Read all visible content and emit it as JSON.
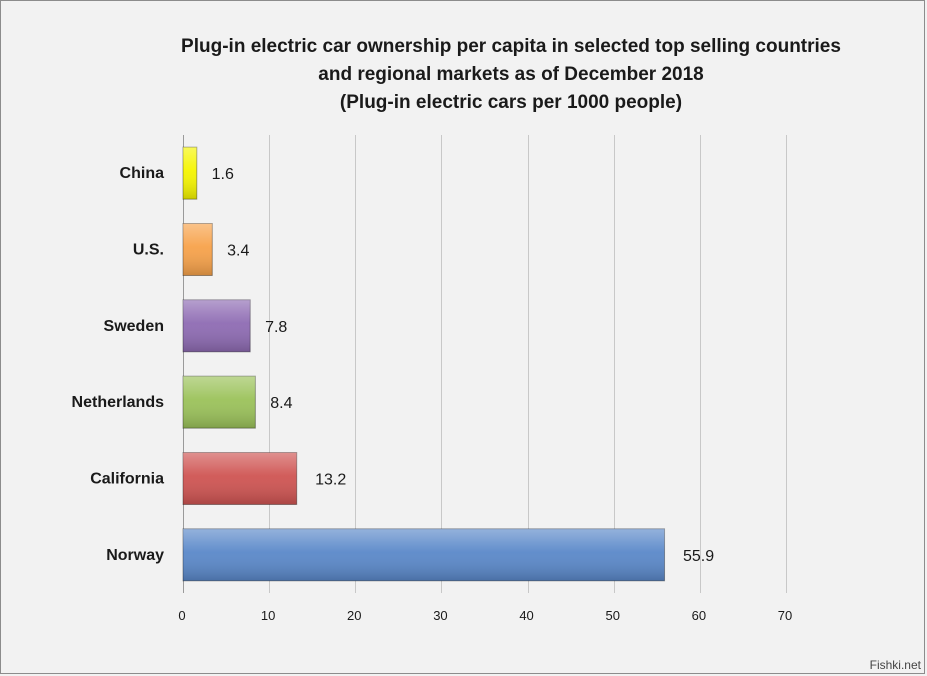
{
  "chart_data": {
    "type": "bar",
    "orientation": "horizontal",
    "title": [
      "Plug-in electric car ownership per capita in selected top selling countries",
      "and regional markets as of December 2018",
      "(Plug-in electric cars per 1000 people)"
    ],
    "categories": [
      "China",
      "U.S.",
      "Sweden",
      "Netherlands",
      "California",
      "Norway"
    ],
    "values": [
      1.6,
      3.4,
      7.8,
      8.4,
      13.2,
      55.9
    ],
    "data_labels": [
      "1.6",
      "3.4",
      "7.8",
      "8.4",
      "13.2",
      "55.9"
    ],
    "colors": [
      "#f5f500",
      "#f7a24a",
      "#8e6bb3",
      "#9bc25a",
      "#cf5452",
      "#5a88c9"
    ],
    "xlim": [
      0,
      70
    ],
    "xticks": [
      0,
      10,
      20,
      30,
      40,
      50,
      60,
      70
    ],
    "xtick_labels": [
      "0",
      "10",
      "20",
      "30",
      "40",
      "50",
      "60",
      "70"
    ],
    "grid": "vertical",
    "legend": "none",
    "xlabel": "",
    "ylabel": ""
  },
  "watermark": "Fishki.net"
}
